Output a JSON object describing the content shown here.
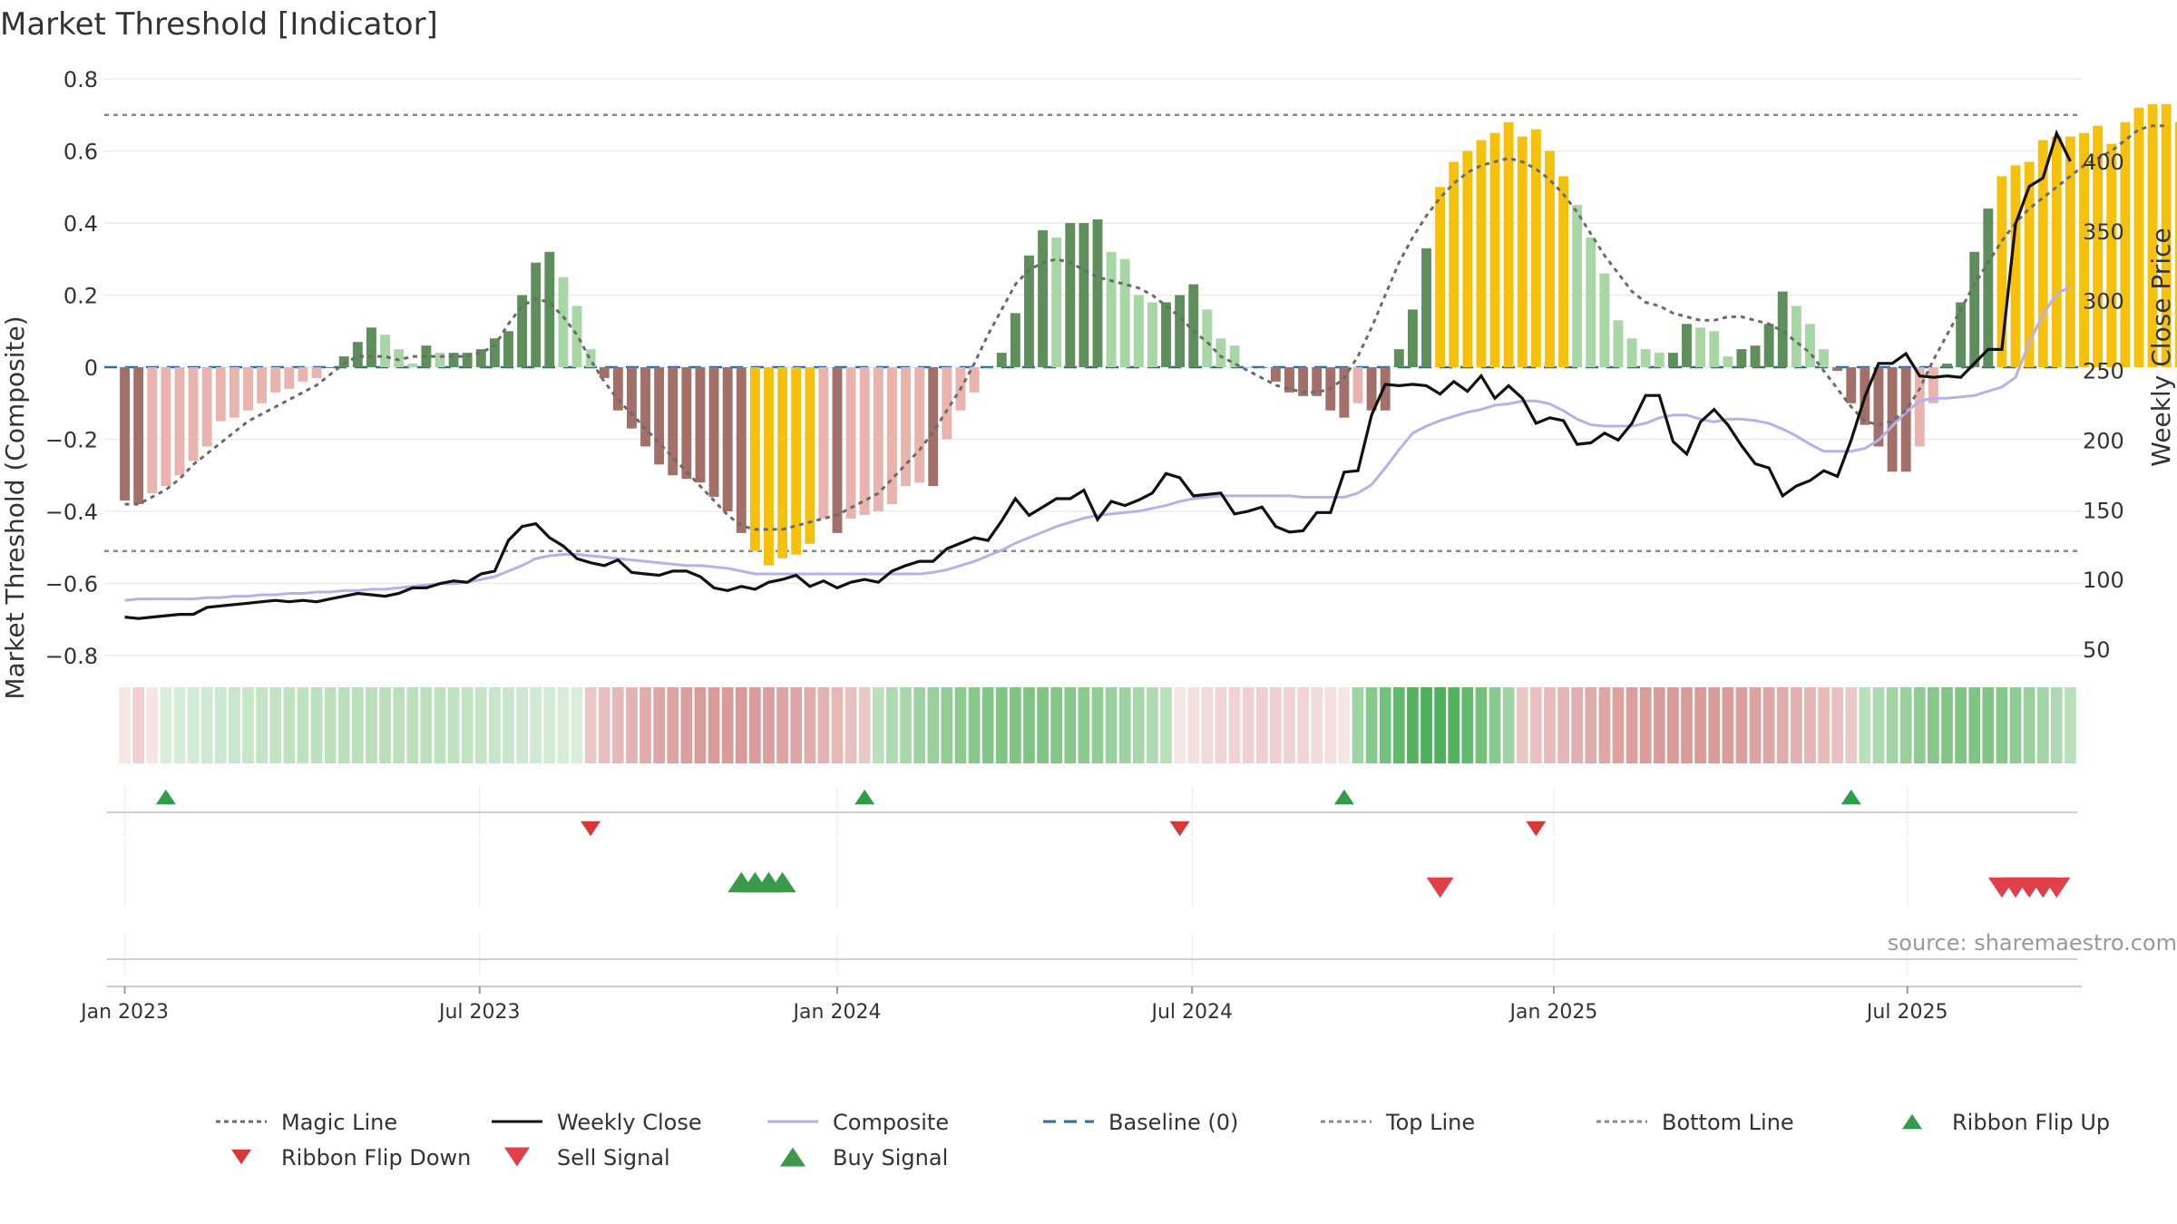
{
  "chart_data": {
    "type": "bar",
    "title": "Market Threshold [Indicator]",
    "ylabel": "Market Threshold (Composite)",
    "y2label": "Weekly Close Price",
    "ylim": [
      -0.8,
      0.8
    ],
    "y2lim": [
      50,
      450
    ],
    "yticks": [
      0.8,
      0.6,
      0.4,
      0.2,
      0,
      -0.2,
      -0.4,
      -0.6,
      -0.8
    ],
    "ytick_labels": [
      "0.8",
      "0.6",
      "0.4",
      "0.2",
      "0",
      "−0.2",
      "−0.4",
      "−0.6",
      "−0.8"
    ],
    "y2ticks": [
      400,
      350,
      300,
      250,
      200,
      150,
      100,
      50
    ],
    "y2tick_labels": [
      "400",
      "350",
      "300",
      "250",
      "200",
      "150",
      "100",
      "50"
    ],
    "xticks": [
      {
        "week": 1,
        "label": "Jan 2023"
      },
      {
        "week": 26.9,
        "label": "Jul 2023"
      },
      {
        "week": 53,
        "label": "Jan 2024"
      },
      {
        "week": 78.9,
        "label": "Jul 2024"
      },
      {
        "week": 105.3,
        "label": "Jan 2025"
      },
      {
        "week": 131.1,
        "label": "Jul 2025"
      }
    ],
    "top_line": 0.7,
    "bottom_line": -0.51,
    "baseline": 0,
    "bar_series": {
      "name": "Weekly Threshold Bars",
      "values": [
        -0.37,
        -0.38,
        -0.35,
        -0.33,
        -0.3,
        -0.26,
        -0.22,
        -0.15,
        -0.14,
        -0.12,
        -0.1,
        -0.07,
        -0.06,
        -0.04,
        -0.03,
        0,
        0.03,
        0.07,
        0.11,
        0.09,
        0.05,
        0.01,
        0.06,
        0.04,
        0.04,
        0.04,
        0.05,
        0.08,
        0.1,
        0.2,
        0.29,
        0.32,
        0.25,
        0.17,
        0.05,
        -0.03,
        -0.12,
        -0.17,
        -0.22,
        -0.27,
        -0.3,
        -0.31,
        -0.32,
        -0.36,
        -0.4,
        -0.46,
        -0.51,
        -0.55,
        -0.53,
        -0.52,
        -0.49,
        -0.42,
        -0.46,
        -0.42,
        -0.41,
        -0.4,
        -0.38,
        -0.33,
        -0.32,
        -0.33,
        -0.2,
        -0.12,
        -0.07,
        0,
        0.04,
        0.15,
        0.31,
        0.38,
        0.36,
        0.4,
        0.4,
        0.41,
        0.32,
        0.3,
        0.2,
        0.18,
        0.18,
        0.2,
        0.23,
        0.16,
        0.08,
        0.06,
        0,
        0,
        -0.04,
        -0.07,
        -0.08,
        -0.08,
        -0.12,
        -0.14,
        -0.1,
        -0.12,
        -0.12,
        0.05,
        0.16,
        0.33,
        0.5,
        0.57,
        0.6,
        0.63,
        0.65,
        0.68,
        0.64,
        0.66,
        0.6,
        0.53,
        0.45,
        0.36,
        0.26,
        0.13,
        0.08,
        0.05,
        0.04,
        0.04,
        0.12,
        0.11,
        0.1,
        0.03,
        0.05,
        0.06,
        0.12,
        0.21,
        0.17,
        0.12,
        0.05,
        -0.01,
        -0.1,
        -0.16,
        -0.22,
        -0.29,
        -0.29,
        -0.22,
        -0.1,
        0.01,
        0.18,
        0.32,
        0.44,
        0.53,
        0.56,
        0.57,
        0.63,
        0.64,
        0.64,
        0.65,
        0.67,
        0.62,
        0.68,
        0.72,
        0.73,
        0.73,
        0.68
      ]
    },
    "bar_colors": {
      "light_red": "#e9b4ae",
      "dark_red": "#a27068",
      "light_green": "#a9d6a5",
      "dark_green": "#5e8e5b",
      "gold": "#f6c10d"
    },
    "weekly_close": {
      "name": "Weekly Close",
      "values": [
        73,
        72,
        73,
        74,
        75,
        75,
        80,
        81,
        82,
        83,
        84,
        85,
        84,
        85,
        84,
        86,
        88,
        90,
        89,
        88,
        90,
        94,
        94,
        97,
        99,
        98,
        104,
        106,
        128,
        138,
        140,
        130,
        124,
        115,
        112,
        110,
        114,
        105,
        104,
        103,
        106,
        106,
        102,
        94,
        92,
        95,
        93,
        98,
        100,
        103,
        95,
        99,
        94,
        98,
        100,
        98,
        106,
        110,
        113,
        113,
        122,
        126,
        130,
        128,
        142,
        158,
        146,
        152,
        158,
        158,
        164,
        143,
        156,
        153,
        157,
        162,
        176,
        173,
        160,
        161,
        162,
        147,
        149,
        152,
        138,
        134,
        135,
        148,
        148,
        177,
        178,
        218,
        240,
        239,
        240,
        239,
        233,
        242,
        235,
        246,
        230,
        239,
        230,
        212,
        216,
        214,
        197,
        198,
        205,
        200,
        212,
        232,
        232,
        199,
        190,
        213,
        222,
        211,
        196,
        183,
        180,
        160,
        167,
        171,
        178,
        174,
        200,
        231,
        255,
        255,
        262,
        246,
        245,
        246,
        245,
        255,
        265,
        265,
        355,
        382,
        388,
        420,
        400
      ]
    },
    "composite": {
      "name": "Composite",
      "values": [
        85,
        86,
        86,
        86,
        86,
        86,
        87,
        87,
        88,
        88,
        89,
        89,
        90,
        90,
        91,
        91,
        92,
        92,
        93,
        93,
        94,
        95,
        96,
        97,
        97,
        98,
        100,
        102,
        106,
        110,
        115,
        117,
        118,
        118,
        117,
        116,
        115,
        114,
        113,
        112,
        111,
        110,
        110,
        109,
        108,
        106,
        104,
        104,
        104,
        104,
        104,
        104,
        104,
        104,
        104,
        104,
        104,
        104,
        104,
        105,
        107,
        110,
        113,
        117,
        121,
        126,
        130,
        134,
        138,
        141,
        144,
        146,
        147,
        148,
        149,
        151,
        153,
        156,
        158,
        159,
        160,
        160,
        160,
        160,
        160,
        160,
        159,
        159,
        159,
        159,
        162,
        168,
        180,
        193,
        205,
        210,
        214,
        217,
        220,
        222,
        225,
        226,
        228,
        228,
        226,
        221,
        215,
        211,
        210,
        210,
        210,
        212,
        216,
        218,
        218,
        215,
        213,
        215,
        215,
        214,
        212,
        208,
        203,
        197,
        192,
        192,
        192,
        194,
        200,
        210,
        220,
        228,
        230,
        230,
        231,
        232,
        235,
        238,
        245,
        270,
        290,
        305,
        310
      ]
    },
    "magic_line": {
      "name": "Magic Line",
      "values": [
        -0.38,
        -0.38,
        -0.36,
        -0.34,
        -0.31,
        -0.27,
        -0.24,
        -0.21,
        -0.18,
        -0.15,
        -0.13,
        -0.11,
        -0.09,
        -0.07,
        -0.05,
        -0.02,
        0.01,
        0.03,
        0.03,
        0.03,
        0.02,
        0.03,
        0.03,
        0.03,
        0.03,
        0.03,
        0.04,
        0.06,
        0.12,
        0.17,
        0.19,
        0.18,
        0.14,
        0.09,
        0.02,
        -0.04,
        -0.09,
        -0.13,
        -0.17,
        -0.21,
        -0.25,
        -0.29,
        -0.33,
        -0.37,
        -0.41,
        -0.44,
        -0.45,
        -0.45,
        -0.45,
        -0.44,
        -0.43,
        -0.42,
        -0.41,
        -0.39,
        -0.37,
        -0.35,
        -0.31,
        -0.27,
        -0.23,
        -0.18,
        -0.12,
        -0.06,
        0.01,
        0.09,
        0.16,
        0.23,
        0.27,
        0.29,
        0.3,
        0.29,
        0.27,
        0.25,
        0.24,
        0.23,
        0.22,
        0.2,
        0.17,
        0.14,
        0.1,
        0.07,
        0.03,
        0.01,
        -0.01,
        -0.03,
        -0.05,
        -0.06,
        -0.07,
        -0.07,
        -0.06,
        -0.03,
        0.03,
        0.11,
        0.2,
        0.29,
        0.36,
        0.42,
        0.47,
        0.51,
        0.54,
        0.56,
        0.57,
        0.58,
        0.57,
        0.55,
        0.52,
        0.48,
        0.43,
        0.37,
        0.31,
        0.26,
        0.21,
        0.18,
        0.17,
        0.15,
        0.14,
        0.13,
        0.13,
        0.14,
        0.14,
        0.13,
        0.12,
        0.1,
        0.07,
        0.04,
        -0.01,
        -0.06,
        -0.11,
        -0.15,
        -0.16,
        -0.15,
        -0.12,
        -0.06,
        0.02,
        0.09,
        0.16,
        0.23,
        0.29,
        0.35,
        0.4,
        0.44,
        0.47,
        0.5,
        0.53,
        0.56,
        0.58,
        0.6,
        0.63,
        0.66,
        0.67,
        0.67
      ]
    },
    "ribbon": {
      "name": "Ribbon",
      "palette": {
        "light_red": "#efcfcf",
        "mid_red": "#d99a98",
        "light_green": "#b9e0bb",
        "mid_green": "#80c484",
        "dark_green": "#4eb05a"
      },
      "segments": [
        {
          "start": 1,
          "end": 3,
          "color": "light_red"
        },
        {
          "start": 4,
          "end": 34,
          "color": "light_green"
        },
        {
          "start": 35,
          "end": 55,
          "color": "mid_red"
        },
        {
          "start": 56,
          "end": 77,
          "color": "mid_green"
        },
        {
          "start": 78,
          "end": 90,
          "color": "light_red"
        },
        {
          "start": 91,
          "end": 102,
          "color": "dark_green"
        },
        {
          "start": 103,
          "end": 127,
          "color": "mid_red"
        },
        {
          "start": 128,
          "end": 143,
          "color": "mid_green"
        }
      ]
    },
    "ribbon_flip_up": [
      4,
      55,
      90,
      127
    ],
    "ribbon_flip_down": [
      35,
      78,
      104
    ],
    "buy_signals": [
      46,
      47,
      48,
      49
    ],
    "sell_signals": [
      97,
      138,
      139,
      140,
      141,
      142
    ],
    "annotation": "source: sharemaestro.com",
    "legend": {
      "position": "bottom",
      "items": [
        {
          "label": "Magic Line",
          "style": "dotted",
          "color": "#6b6b6b"
        },
        {
          "label": "Weekly Close",
          "style": "solid",
          "color": "#111111"
        },
        {
          "label": "Composite",
          "style": "solid",
          "color": "#b8b0e8"
        },
        {
          "label": "Baseline (0)",
          "style": "dashed",
          "color": "#2b6e9e"
        },
        {
          "label": "Top Line",
          "style": "dotted",
          "color": "#8a8a8a"
        },
        {
          "label": "Bottom Line",
          "style": "dotted",
          "color": "#8a8a8a"
        },
        {
          "label": "Ribbon Flip Up",
          "style": "tri-up",
          "color": "#2e9e4a"
        },
        {
          "label": "Ribbon Flip Down",
          "style": "tri-down",
          "color": "#d63838"
        },
        {
          "label": "Sell Signal",
          "style": "tri-down",
          "color": "#e0404a"
        },
        {
          "label": "Buy Signal",
          "style": "tri-up",
          "color": "#3a9a4c"
        }
      ]
    }
  }
}
